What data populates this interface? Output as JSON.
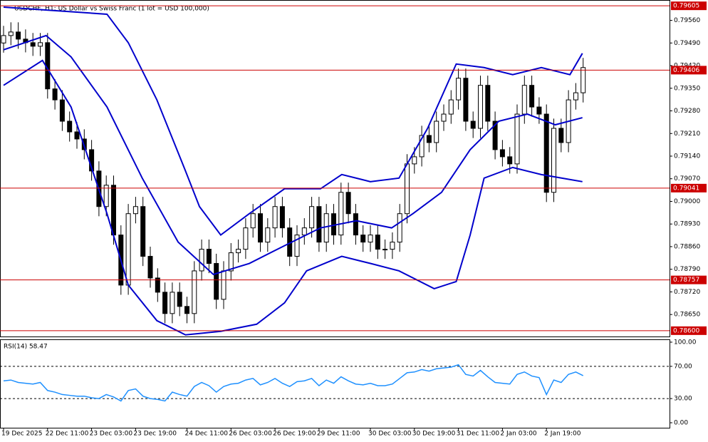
{
  "chart_data": [
    {
      "type": "candlestick",
      "title": "USDCHF, H1:  US Dollar vs Swiss Franc (1 lot = USD 100,000)",
      "ylim": [
        0.78582,
        0.79623
      ],
      "yticks": [
        {
          "value": 0.7956,
          "label": "0.79560"
        },
        {
          "value": 0.7949,
          "label": "0.79490"
        },
        {
          "value": 0.7942,
          "label": "0.79420"
        },
        {
          "value": 0.7935,
          "label": "0.79350"
        },
        {
          "value": 0.7928,
          "label": "0.79280"
        },
        {
          "value": 0.7921,
          "label": "0.79210"
        },
        {
          "value": 0.7914,
          "label": "0.79140"
        },
        {
          "value": 0.7907,
          "label": "0.79070"
        },
        {
          "value": 0.79,
          "label": "0.79000"
        },
        {
          "value": 0.7893,
          "label": "0.78930"
        },
        {
          "value": 0.7886,
          "label": "0.78860"
        },
        {
          "value": 0.7879,
          "label": "0.78790"
        },
        {
          "value": 0.7872,
          "label": "0.78720"
        },
        {
          "value": 0.7865,
          "label": "0.78650"
        }
      ],
      "levels": [
        {
          "value": 0.79605,
          "label": "0.79605"
        },
        {
          "value": 0.79406,
          "label": "0.79406"
        },
        {
          "value": 0.79041,
          "label": "0.79041"
        },
        {
          "value": 0.78757,
          "label": "0.78757"
        },
        {
          "value": 0.786,
          "label": "0.78600"
        }
      ],
      "level_color": "#cc0000",
      "categories": [
        "19 Dec 2025",
        null,
        null,
        null,
        null,
        null,
        "22 Dec 11:00",
        null,
        null,
        null,
        null,
        null,
        "23 Dec 03:00",
        null,
        null,
        null,
        null,
        null,
        "23 Dec 19:00",
        null,
        null,
        null,
        null,
        null,
        null,
        "24 Dec 11:00",
        null,
        null,
        null,
        null,
        null,
        "26 Dec 03:00",
        null,
        null,
        null,
        null,
        null,
        "26 Dec 19:00",
        null,
        null,
        null,
        null,
        null,
        "29 Dec 11:00",
        null,
        null,
        null,
        null,
        null,
        null,
        "30 Dec 03:00",
        null,
        null,
        null,
        null,
        null,
        "30 Dec 19:00",
        null,
        null,
        null,
        null,
        null,
        "31 Dec 11:00",
        null,
        null,
        null,
        null,
        null,
        "2 Jan 03:00",
        null,
        null,
        null,
        null,
        null,
        "2 Jan 19:00",
        null,
        null,
        null,
        null,
        null
      ],
      "open": [
        0.7949,
        0.79513,
        0.79524,
        0.79502,
        0.79491,
        0.7948,
        0.79491,
        0.79348,
        0.79314,
        0.79248,
        0.79215,
        0.79193,
        0.7916,
        0.79094,
        0.78984,
        0.7905,
        0.78896,
        0.78741,
        0.78962,
        0.78984,
        0.7883,
        0.78763,
        0.78719,
        0.78653,
        0.78719,
        0.78675,
        0.78653,
        0.78785,
        0.78852,
        0.78808,
        0.78697,
        0.78785,
        0.78841,
        0.78852,
        0.78918,
        0.78962,
        0.78874,
        0.78918,
        0.78984,
        0.78918,
        0.7883,
        0.78896,
        0.78918,
        0.78984,
        0.78874,
        0.78962,
        0.78896,
        0.79028,
        0.78962,
        0.78896,
        0.78874,
        0.78896,
        0.78852,
        0.78852,
        0.78874,
        0.78962,
        0.79116,
        0.79138,
        0.79204,
        0.79182,
        0.79248,
        0.7927,
        0.79314,
        0.79381,
        0.79248,
        0.79226,
        0.79359,
        0.79248,
        0.7916,
        0.79138,
        0.79116,
        0.7927,
        0.79359,
        0.79292,
        0.7927,
        0.79028,
        0.79226,
        0.79182,
        0.79314,
        0.79336
      ],
      "high": [
        0.79543,
        0.79554,
        0.79554,
        0.79532,
        0.79521,
        0.79521,
        0.79521,
        0.79378,
        0.79344,
        0.79278,
        0.79245,
        0.79223,
        0.7919,
        0.79124,
        0.7908,
        0.7908,
        0.78926,
        0.78992,
        0.79014,
        0.79014,
        0.7886,
        0.78793,
        0.78749,
        0.78749,
        0.78749,
        0.78705,
        0.78815,
        0.78882,
        0.78882,
        0.78838,
        0.78815,
        0.78871,
        0.78882,
        0.78948,
        0.78992,
        0.78992,
        0.78948,
        0.79014,
        0.79014,
        0.78948,
        0.78926,
        0.78948,
        0.79014,
        0.79014,
        0.78992,
        0.78992,
        0.79058,
        0.79058,
        0.78992,
        0.78926,
        0.78926,
        0.78926,
        0.78882,
        0.78904,
        0.78992,
        0.79146,
        0.79168,
        0.79234,
        0.79234,
        0.79278,
        0.793,
        0.79344,
        0.79411,
        0.79411,
        0.79278,
        0.79389,
        0.79389,
        0.79278,
        0.7919,
        0.79168,
        0.793,
        0.79389,
        0.79389,
        0.79322,
        0.793,
        0.79256,
        0.79256,
        0.79344,
        0.79366,
        0.79444
      ],
      "low": [
        0.7946,
        0.79483,
        0.79472,
        0.79461,
        0.7945,
        0.7945,
        0.79318,
        0.79284,
        0.79218,
        0.79185,
        0.79163,
        0.7913,
        0.79064,
        0.78954,
        0.78954,
        0.78866,
        0.78711,
        0.78711,
        0.78932,
        0.788,
        0.78733,
        0.78689,
        0.78623,
        0.78623,
        0.78645,
        0.78623,
        0.78623,
        0.78755,
        0.78778,
        0.78667,
        0.78667,
        0.78755,
        0.78811,
        0.78822,
        0.78888,
        0.78844,
        0.78844,
        0.78888,
        0.78888,
        0.788,
        0.788,
        0.78866,
        0.78888,
        0.78844,
        0.78844,
        0.78866,
        0.78866,
        0.78932,
        0.78866,
        0.78844,
        0.78844,
        0.78822,
        0.78822,
        0.78822,
        0.78844,
        0.78932,
        0.79086,
        0.79108,
        0.79152,
        0.79152,
        0.79218,
        0.7924,
        0.79284,
        0.79218,
        0.79196,
        0.79196,
        0.79218,
        0.7913,
        0.79108,
        0.79086,
        0.79086,
        0.7924,
        0.79262,
        0.7924,
        0.78998,
        0.78998,
        0.79152,
        0.79152,
        0.79284,
        0.79306
      ],
      "close": [
        0.79513,
        0.79524,
        0.79502,
        0.79491,
        0.7948,
        0.79491,
        0.79348,
        0.79314,
        0.79248,
        0.79215,
        0.79193,
        0.7916,
        0.79094,
        0.78984,
        0.7905,
        0.78896,
        0.78741,
        0.78962,
        0.78984,
        0.7883,
        0.78763,
        0.78719,
        0.78653,
        0.78719,
        0.78675,
        0.78653,
        0.78785,
        0.78852,
        0.78808,
        0.78697,
        0.78785,
        0.78841,
        0.78852,
        0.78918,
        0.78962,
        0.78874,
        0.78918,
        0.78984,
        0.78918,
        0.7883,
        0.78896,
        0.78918,
        0.78984,
        0.78874,
        0.78962,
        0.78896,
        0.79028,
        0.78962,
        0.78896,
        0.78874,
        0.78896,
        0.78852,
        0.78852,
        0.78874,
        0.78962,
        0.79116,
        0.79138,
        0.79204,
        0.79182,
        0.79248,
        0.7927,
        0.79314,
        0.79381,
        0.79248,
        0.79226,
        0.79359,
        0.79248,
        0.7916,
        0.79138,
        0.79116,
        0.7927,
        0.79359,
        0.79292,
        0.7927,
        0.79028,
        0.79226,
        0.79182,
        0.79314,
        0.79336,
        0.79414
      ],
      "bands": [
        {
          "color": "#0000cc",
          "x": [
            0,
            14.1,
            17,
            20.9,
            24.8,
            26.7,
            29.6,
            33.5,
            38.3,
            43.2,
            46.1,
            50,
            53.9,
            57.8,
            61.7,
            65.5,
            69.4,
            73.3,
            77.2,
            78.9
          ],
          "values": [
            0.79601,
            0.79579,
            0.79491,
            0.79314,
            0.79094,
            0.78984,
            0.78896,
            0.78962,
            0.79039,
            0.79039,
            0.79083,
            0.79061,
            0.79072,
            0.79226,
            0.79425,
            0.79414,
            0.79392,
            0.79414,
            0.79392,
            0.79458
          ]
        },
        {
          "color": "#0000cc",
          "x": [
            0,
            5.8,
            9.2,
            14.1,
            18.9,
            23.8,
            28.6,
            33.5,
            38.3,
            43.2,
            48.1,
            52.9,
            55.8,
            59.7,
            63.6,
            67.5,
            71.4,
            75.2,
            78.9
          ],
          "values": [
            0.79469,
            0.79513,
            0.79447,
            0.79292,
            0.79072,
            0.78874,
            0.78774,
            0.78808,
            0.78863,
            0.78918,
            0.7894,
            0.78918,
            0.78962,
            0.79028,
            0.7916,
            0.79248,
            0.7927,
            0.79237,
            0.79259
          ]
        },
        {
          "color": "#0000cc",
          "x": [
            0,
            5.3,
            9.2,
            14.1,
            17,
            20.9,
            24.8,
            29.6,
            34.5,
            38.3,
            41.3,
            46.1,
            50,
            53.9,
            58.7,
            61.7,
            63.6,
            65.5,
            69.4,
            73.3,
            78.9
          ],
          "values": [
            0.79359,
            0.79436,
            0.79292,
            0.78962,
            0.78741,
            0.78631,
            0.78587,
            0.78598,
            0.7862,
            0.78686,
            0.78785,
            0.7883,
            0.78808,
            0.78785,
            0.7873,
            0.78752,
            0.78896,
            0.79072,
            0.79105,
            0.79083,
            0.79061
          ]
        }
      ]
    },
    {
      "type": "line",
      "title": "RSI(14) 58.47",
      "color": "#1e90ff",
      "ylim": [
        -6.2,
        103.5
      ],
      "yticks": [
        {
          "value": 100,
          "label": "100.00"
        },
        {
          "value": 70,
          "label": "70.00"
        },
        {
          "value": 30,
          "label": "30.00"
        },
        {
          "value": 0,
          "label": "0.00"
        }
      ],
      "levels": [
        70,
        30
      ],
      "values": [
        52,
        53,
        50,
        49,
        48,
        50,
        40,
        38,
        35,
        34,
        33,
        33,
        31,
        30,
        35,
        32,
        27,
        40,
        42,
        33,
        30,
        29,
        27,
        38,
        35,
        33,
        45,
        50,
        46,
        38,
        45,
        48,
        49,
        53,
        55,
        47,
        50,
        55,
        49,
        45,
        51,
        52,
        55,
        46,
        53,
        49,
        57,
        52,
        48,
        47,
        49,
        46,
        46,
        48,
        55,
        62,
        63,
        66,
        64,
        67,
        68,
        69,
        72,
        60,
        58,
        65,
        57,
        50,
        49,
        48,
        60,
        63,
        58,
        56,
        35,
        53,
        50,
        60,
        63,
        58.47
      ]
    }
  ]
}
